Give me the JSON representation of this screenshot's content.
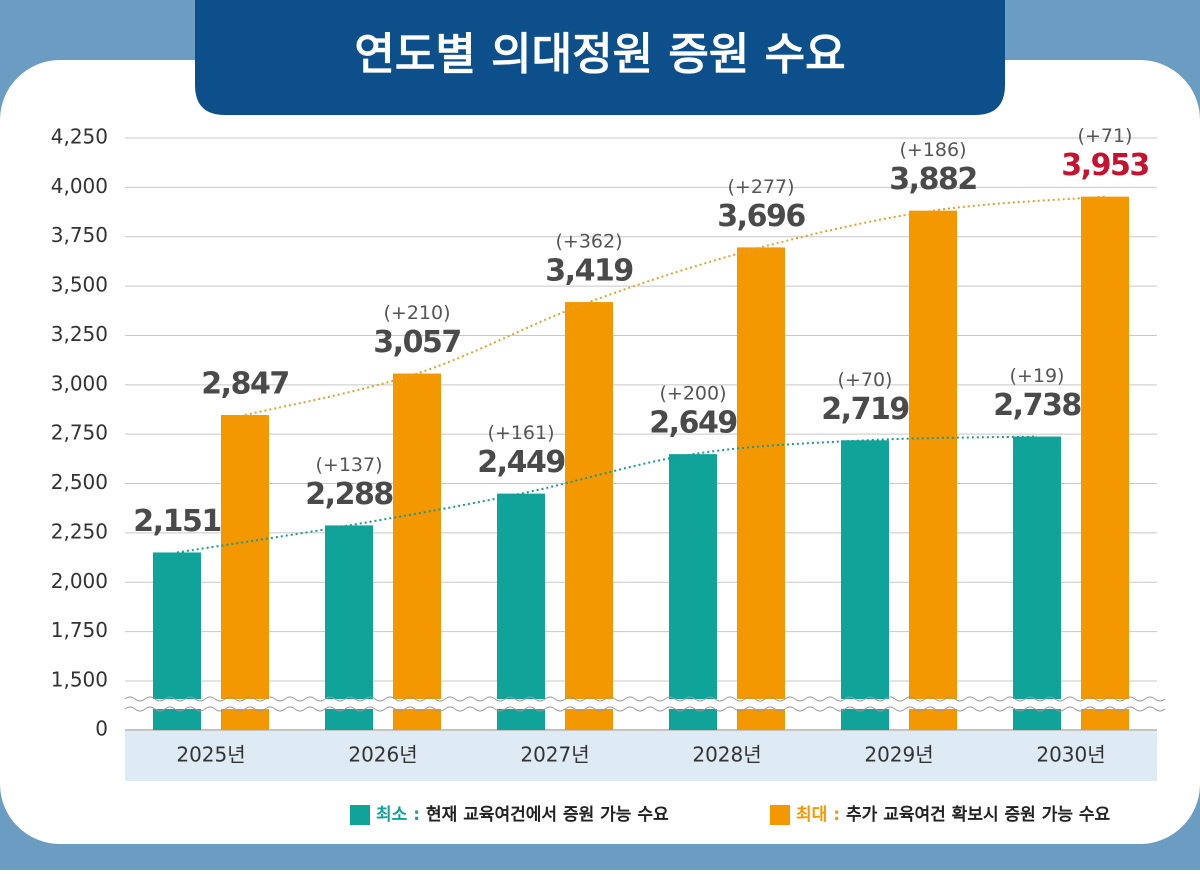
{
  "chart_data": {
    "type": "bar",
    "title": "연도별 의대정원 증원 수요",
    "categories": [
      "2025년",
      "2026년",
      "2027년",
      "2028년",
      "2029년",
      "2030년"
    ],
    "series": [
      {
        "name": "최소 :",
        "description": "현재 교육여건에서 증원 가능 수요",
        "color": "#10a39a",
        "trendline_color": "#1b9a8e",
        "values": [
          2151,
          2288,
          2449,
          2649,
          2719,
          2738
        ],
        "value_labels": [
          "2,151",
          "2,288",
          "2,449",
          "2,649",
          "2,719",
          "2,738"
        ],
        "value_label_colors": [
          "#4a4a4a",
          "#4a4a4a",
          "#4a4a4a",
          "#4a4a4a",
          "#4a4a4a",
          "#4a4a4a"
        ],
        "annotations": [
          null,
          "(+137)",
          "(+161)",
          "(+200)",
          "(+70)",
          "(+19)"
        ]
      },
      {
        "name": "최대 :",
        "description": "추가 교육여건 확보시 증원 가능 수요",
        "color": "#f39800",
        "trendline_color": "#e3a12a",
        "values": [
          2847,
          3057,
          3419,
          3696,
          3882,
          3953
        ],
        "value_labels": [
          "2,847",
          "3,057",
          "3,419",
          "3,696",
          "3,882",
          "3,953"
        ],
        "value_label_colors": [
          "#4a4a4a",
          "#4a4a4a",
          "#4a4a4a",
          "#4a4a4a",
          "#4a4a4a",
          "#c4122f"
        ],
        "annotations": [
          null,
          "(+210)",
          "(+362)",
          "(+277)",
          "(+186)",
          "(+71)"
        ]
      }
    ],
    "ylim": [
      0,
      4250
    ],
    "yticks": [
      0,
      {
        "value": 1500,
        "label": "1,500"
      },
      {
        "value": 1750,
        "label": "1,750"
      },
      {
        "value": 2000,
        "label": "2,000"
      },
      {
        "value": 2250,
        "label": "2,250"
      },
      {
        "value": 2500,
        "label": "2,500"
      },
      {
        "value": 2750,
        "label": "2,750"
      },
      {
        "value": 3000,
        "label": "3,000"
      },
      {
        "value": 3250,
        "label": "3,250"
      },
      {
        "value": 3500,
        "label": "3,500"
      },
      {
        "value": 3750,
        "label": "3,750"
      },
      {
        "value": 4000,
        "label": "4,000"
      },
      {
        "value": 4250,
        "label": "4,250"
      }
    ],
    "y_axis_break": true,
    "grid": true,
    "trendlines": true
  }
}
